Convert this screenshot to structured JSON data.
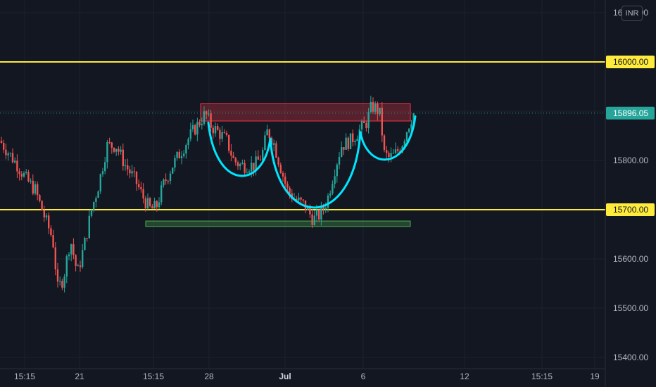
{
  "chart_data": {
    "type": "candlestick",
    "currency": "INR",
    "ylim": [
      15400,
      16100
    ],
    "y_ticks": [
      "15400.00",
      "15500.00",
      "15600.00",
      "15700.00",
      "15800.00"
    ],
    "top_tick_partial": "16100.00",
    "x_ticks": [
      {
        "label": "15:15",
        "bold": false
      },
      {
        "label": "21",
        "bold": false
      },
      {
        "label": "15:15",
        "bold": false
      },
      {
        "label": "28",
        "bold": false
      },
      {
        "label": "Jul",
        "bold": true
      },
      {
        "label": "6",
        "bold": false
      },
      {
        "label": "12",
        "bold": false
      },
      {
        "label": "15:15",
        "bold": false
      },
      {
        "label": "19",
        "bold": false
      }
    ],
    "price_labels": [
      {
        "value": 16000.0,
        "text": "16000.00",
        "color": "#ffeb3b"
      },
      {
        "value": 15896.05,
        "text": "15896.05",
        "color": "#26a69a"
      },
      {
        "value": 15700.0,
        "text": "15700.00",
        "color": "#ffeb3b"
      }
    ],
    "horizontal_lines": [
      16000,
      15700
    ],
    "last_price": 15896.05,
    "zones": [
      {
        "name": "resistance",
        "ymin": 15880,
        "ymax": 15915,
        "x_start": 285,
        "x_end": 583,
        "color": "#f23645"
      },
      {
        "name": "support",
        "ymin": 15666,
        "ymax": 15677,
        "x_start": 207,
        "x_end": 583,
        "color": "#4caf50"
      }
    ],
    "anchors": [
      {
        "x": 0,
        "price": 15840
      },
      {
        "x": 10,
        "price": 15820
      },
      {
        "x": 25,
        "price": 15790
      },
      {
        "x": 38,
        "price": 15760
      },
      {
        "x": 50,
        "price": 15740
      },
      {
        "x": 62,
        "price": 15690
      },
      {
        "x": 75,
        "price": 15640
      },
      {
        "x": 82,
        "price": 15540
      },
      {
        "x": 90,
        "price": 15560
      },
      {
        "x": 100,
        "price": 15640
      },
      {
        "x": 110,
        "price": 15570
      },
      {
        "x": 120,
        "price": 15630
      },
      {
        "x": 130,
        "price": 15700
      },
      {
        "x": 140,
        "price": 15750
      },
      {
        "x": 152,
        "price": 15830
      },
      {
        "x": 165,
        "price": 15830
      },
      {
        "x": 178,
        "price": 15790
      },
      {
        "x": 192,
        "price": 15760
      },
      {
        "x": 205,
        "price": 15720
      },
      {
        "x": 214,
        "price": 15700
      },
      {
        "x": 222,
        "price": 15705
      },
      {
        "x": 232,
        "price": 15750
      },
      {
        "x": 245,
        "price": 15790
      },
      {
        "x": 258,
        "price": 15820
      },
      {
        "x": 270,
        "price": 15850
      },
      {
        "x": 282,
        "price": 15875
      },
      {
        "x": 292,
        "price": 15895
      },
      {
        "x": 300,
        "price": 15870
      },
      {
        "x": 312,
        "price": 15855
      },
      {
        "x": 322,
        "price": 15840
      },
      {
        "x": 332,
        "price": 15800
      },
      {
        "x": 342,
        "price": 15790
      },
      {
        "x": 352,
        "price": 15790
      },
      {
        "x": 362,
        "price": 15790
      },
      {
        "x": 372,
        "price": 15810
      },
      {
        "x": 380,
        "price": 15860
      },
      {
        "x": 388,
        "price": 15840
      },
      {
        "x": 398,
        "price": 15790
      },
      {
        "x": 408,
        "price": 15740
      },
      {
        "x": 420,
        "price": 15720
      },
      {
        "x": 432,
        "price": 15710
      },
      {
        "x": 445,
        "price": 15680
      },
      {
        "x": 455,
        "price": 15690
      },
      {
        "x": 465,
        "price": 15720
      },
      {
        "x": 475,
        "price": 15780
      },
      {
        "x": 485,
        "price": 15830
      },
      {
        "x": 498,
        "price": 15840
      },
      {
        "x": 510,
        "price": 15860
      },
      {
        "x": 520,
        "price": 15875
      },
      {
        "x": 528,
        "price": 15910
      },
      {
        "x": 535,
        "price": 15905
      },
      {
        "x": 541,
        "price": 15890
      },
      {
        "x": 545,
        "price": 15815
      },
      {
        "x": 552,
        "price": 15805
      },
      {
        "x": 560,
        "price": 15810
      },
      {
        "x": 570,
        "price": 15830
      },
      {
        "x": 580,
        "price": 15870
      },
      {
        "x": 587,
        "price": 15895
      }
    ],
    "pattern_arcs": [
      {
        "x_start": 296,
        "x_end": 384,
        "bottom_price": 15750
      },
      {
        "x_start": 384,
        "x_end": 512,
        "bottom_price": 15667
      },
      {
        "x_start": 512,
        "x_end": 590,
        "bottom_price": 15790
      }
    ]
  }
}
